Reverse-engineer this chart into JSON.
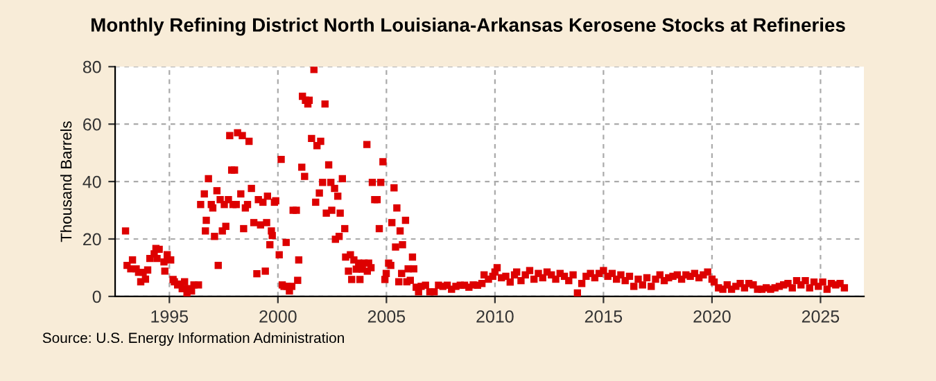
{
  "chart_data": {
    "type": "scatter",
    "title": "Monthly Refining District North Louisiana-Arkansas Kerosene Stocks at Refineries",
    "ylabel": "Thousand Barrels",
    "annotations": [
      "Source: U.S. Energy Information Administration"
    ],
    "xlim": [
      1992.5,
      2027
    ],
    "xticks": [
      1995,
      2000,
      2005,
      2010,
      2015,
      2020,
      2025
    ],
    "ylim": [
      0,
      80
    ],
    "yticks": [
      0,
      20,
      40,
      60,
      80
    ],
    "grid": true,
    "marker": "square",
    "series": [
      {
        "color": "#dd0000",
        "x": [
          1992.98,
          1993.05,
          1993.22,
          1993.3,
          1993.47,
          1993.58,
          1993.68,
          1993.79,
          1993.9,
          1994.0,
          1994.1,
          1994.3,
          1994.38,
          1994.53,
          1994.43,
          1994.75,
          1994.79,
          1994.9,
          1995.06,
          1995.17,
          1995.23,
          1995.38,
          1995.49,
          1995.59,
          1995.7,
          1995.81,
          1995.91,
          1996.02,
          1996.13,
          1996.34,
          1996.44,
          1996.61,
          1996.7,
          1996.66,
          1996.8,
          1996.93,
          1997.0,
          1997.08,
          1997.19,
          1997.25,
          1997.34,
          1997.44,
          1997.53,
          1997.6,
          1997.72,
          1997.78,
          1997.87,
          1998.0,
          1997.93,
          1998.08,
          1998.14,
          1998.29,
          1998.36,
          1998.42,
          1998.5,
          1998.6,
          1998.67,
          1998.78,
          1998.89,
          1999.03,
          1999.1,
          1999.2,
          1999.31,
          1999.42,
          1999.48,
          1999.52,
          1999.63,
          1999.7,
          1999.74,
          1999.84,
          1999.9,
          2000.06,
          2000.15,
          2000.2,
          2000.28,
          2000.38,
          2000.42,
          2000.53,
          2000.64,
          2000.7,
          2000.85,
          2000.91,
          2000.96,
          2001.1,
          2001.13,
          2001.23,
          2001.27,
          2001.38,
          2001.44,
          2001.55,
          2001.66,
          2001.74,
          2001.8,
          2001.91,
          2001.97,
          2002.06,
          2002.17,
          2002.23,
          2002.34,
          2002.44,
          2002.48,
          2002.61,
          2002.65,
          2002.76,
          2002.82,
          2002.87,
          2002.97,
          2003.08,
          2003.12,
          2003.25,
          2003.34,
          2003.4,
          2003.5,
          2003.61,
          2003.72,
          2003.78,
          2003.89,
          2003.97,
          2004.1,
          2004.12,
          2004.18,
          2004.29,
          2004.35,
          2004.46,
          2004.57,
          2004.67,
          2004.74,
          2004.84,
          2004.93,
          2004.99,
          2005.1,
          2005.2,
          2005.25,
          2005.35,
          2005.42,
          2005.48,
          2005.57,
          2005.63,
          2005.7,
          2005.74,
          2005.88,
          2005.94,
          2006.0,
          2006.1,
          2006.2,
          2006.26,
          2006.37,
          2006.48,
          2006.6,
          2006.8,
          2007.0,
          2007.2,
          2007.4,
          2007.6,
          2007.8,
          2008.0,
          2008.2,
          2008.4,
          2008.6,
          2008.8,
          2009.0,
          2009.2,
          2009.4,
          2009.5,
          2009.7,
          2009.9,
          2010.0,
          2010.1,
          2010.3,
          2010.5,
          2010.7,
          2010.9,
          2011.0,
          2011.2,
          2011.4,
          2011.6,
          2011.8,
          2012.0,
          2012.2,
          2012.4,
          2012.6,
          2012.8,
          2013.0,
          2013.2,
          2013.4,
          2013.6,
          2013.8,
          2014.0,
          2014.2,
          2014.4,
          2014.6,
          2014.8,
          2015.0,
          2015.2,
          2015.4,
          2015.6,
          2015.8,
          2016.0,
          2016.2,
          2016.4,
          2016.6,
          2016.8,
          2017.0,
          2017.2,
          2017.4,
          2017.6,
          2017.8,
          2018.0,
          2018.2,
          2018.4,
          2018.6,
          2018.8,
          2019.0,
          2019.2,
          2019.4,
          2019.6,
          2019.8,
          2020.0,
          2020.1,
          2020.3,
          2020.5,
          2020.7,
          2020.9,
          2021.1,
          2021.3,
          2021.5,
          2021.7,
          2021.9,
          2022.1,
          2022.3,
          2022.5,
          2022.7,
          2022.9,
          2023.1,
          2023.3,
          2023.5,
          2023.7,
          2023.9,
          2024.1,
          2024.3,
          2024.5,
          2024.7,
          2024.9,
          2025.1,
          2025.3,
          2025.5,
          2025.7,
          2025.9,
          2026.1
        ],
        "values": [
          22.8,
          10.8,
          9.6,
          12.7,
          9.6,
          8.4,
          5.1,
          8.4,
          6,
          9.2,
          13.2,
          14.8,
          16.7,
          16.4,
          13.2,
          12,
          8.8,
          14.5,
          12.7,
          5.9,
          5.1,
          4,
          4.3,
          2.7,
          5.1,
          0.8,
          2.7,
          1.9,
          4,
          4,
          32,
          35.7,
          26.5,
          22.8,
          41,
          32,
          30.8,
          20.9,
          36.8,
          10.8,
          33.7,
          22.8,
          32,
          24.4,
          33.7,
          56,
          44,
          44,
          32,
          32,
          57,
          35.7,
          56,
          23.6,
          30.8,
          32,
          54,
          37.6,
          25.7,
          7.9,
          33.7,
          24.9,
          32.8,
          8.8,
          25.7,
          34.9,
          18,
          22.8,
          21.2,
          32.8,
          33.3,
          14.5,
          47.7,
          4,
          3.5,
          18.8,
          3.5,
          1.9,
          3.5,
          30,
          30,
          5.6,
          12.7,
          45,
          69.7,
          41.8,
          68.3,
          67,
          68.3,
          55,
          79,
          32.8,
          52.5,
          36,
          54,
          39.7,
          67,
          29,
          45.8,
          39.7,
          30,
          37.6,
          19.9,
          34.9,
          20.9,
          29,
          41,
          23.6,
          13.7,
          8.8,
          14.5,
          5.9,
          12.7,
          9.5,
          11.6,
          5.9,
          9.5,
          11.6,
          52.9,
          8.8,
          11.6,
          10,
          39.7,
          33.7,
          33.7,
          23.6,
          39.7,
          46.9,
          5.9,
          8,
          11.6,
          10.8,
          25.7,
          37.8,
          17.2,
          30.8,
          5.1,
          22.8,
          8,
          18,
          26.5,
          5.1,
          9.6,
          5.6,
          13.7,
          9.6,
          3.2,
          1.6,
          3.5,
          3.9,
          1.6,
          1.6,
          3.9,
          3.5,
          3.9,
          2.5,
          3.5,
          3.9,
          3.9,
          3.2,
          4,
          3.9,
          4.5,
          7.5,
          6,
          7,
          8.5,
          10,
          6.5,
          7,
          5,
          7.5,
          8.5,
          5.5,
          7.5,
          9,
          6,
          8,
          6.5,
          8.5,
          7.5,
          6,
          8,
          7,
          5.5,
          7.5,
          1.2,
          4.5,
          7,
          8,
          6.5,
          8,
          9,
          7,
          8,
          6,
          7.5,
          5.5,
          7,
          3.5,
          6,
          4,
          6.5,
          3.5,
          6,
          7.5,
          5.5,
          6.5,
          7,
          7.5,
          6,
          7.5,
          7,
          8,
          6.5,
          7.5,
          8.5,
          6,
          5,
          3,
          2.5,
          4,
          2.5,
          3.5,
          4.5,
          3,
          4.5,
          4,
          2.5,
          2.5,
          3,
          2.5,
          3,
          3.5,
          4,
          4.5,
          3,
          5.5,
          4,
          5.5,
          3,
          5,
          3.5,
          5,
          2.5,
          4.5,
          4,
          4.5,
          3
        ]
      }
    ]
  }
}
